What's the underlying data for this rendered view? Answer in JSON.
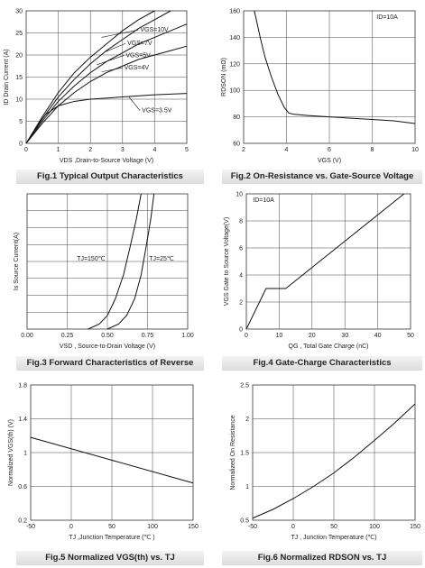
{
  "captions": {
    "fig1": "Fig.1 Typical Output Characteristics",
    "fig2": "Fig.2 On-Resistance vs. Gate-Source Voltage",
    "fig3": "Fig.3 Forward Characteristics of Reverse",
    "fig4": "Fig.4 Gate-Charge Characteristics",
    "fig5": "Fig.5 Normalized VGS(th) vs. TJ",
    "fig6": "Fig.6 Normalized RDSON vs. TJ"
  },
  "chart_data": [
    {
      "id": "fig1",
      "type": "line",
      "xlabel": "VDS ,Drain-to-Source Voltage (V)",
      "ylabel": "ID Drain Current (A)",
      "xlim": [
        0,
        5
      ],
      "ylim": [
        0,
        30
      ],
      "xticks": [
        0,
        1,
        2,
        3,
        4,
        5
      ],
      "yticks": [
        0,
        5,
        10,
        15,
        20,
        25,
        30
      ],
      "grid": true,
      "series": [
        {
          "name": "VGS=10V",
          "x": [
            0,
            0.5,
            1,
            1.5,
            2,
            2.5,
            3,
            3.5,
            4
          ],
          "y": [
            0,
            6,
            11.5,
            16,
            19.5,
            22.5,
            25.5,
            28,
            30
          ]
        },
        {
          "name": "VGS=7V",
          "x": [
            0,
            0.5,
            1,
            1.5,
            2,
            2.5,
            3,
            3.5,
            4,
            4.5
          ],
          "y": [
            0,
            5.5,
            10.5,
            14.5,
            18,
            21,
            23.5,
            26,
            28,
            30
          ]
        },
        {
          "name": "VGS=5V",
          "x": [
            0,
            0.5,
            1,
            1.5,
            2,
            2.5,
            3,
            3.5,
            4,
            4.5,
            5
          ],
          "y": [
            0,
            5,
            9.5,
            13,
            16,
            18.5,
            20.5,
            22.5,
            24,
            25.5,
            27
          ]
        },
        {
          "name": "VGS=4V",
          "x": [
            0,
            0.5,
            1,
            1.5,
            2,
            2.5,
            3,
            3.5,
            4,
            4.5,
            5
          ],
          "y": [
            0,
            4.5,
            8.5,
            11.5,
            14,
            16,
            17.5,
            19,
            20,
            21,
            22
          ]
        },
        {
          "name": "VGS=3.5V",
          "x": [
            0,
            0.3,
            0.6,
            1,
            1.5,
            2,
            3,
            4,
            5
          ],
          "y": [
            0,
            3.5,
            6.5,
            8.5,
            9.5,
            10,
            10.5,
            11,
            11.3
          ]
        }
      ],
      "annotations": [
        "VGS=10V",
        "VGS=7V",
        "VGS=5V",
        "VGS=4V",
        "VGS=3.5V"
      ]
    },
    {
      "id": "fig2",
      "type": "line",
      "xlabel": "VGS (V)",
      "ylabel": "RDSON (mΩ)",
      "xlim": [
        2,
        10
      ],
      "ylim": [
        60,
        160
      ],
      "xticks": [
        2,
        4,
        6,
        8,
        10
      ],
      "yticks": [
        60,
        80,
        100,
        120,
        140,
        160
      ],
      "grid": true,
      "series": [
        {
          "name": "",
          "x": [
            2.5,
            2.8,
            3.0,
            3.3,
            3.6,
            3.9,
            4.1,
            4.3,
            5,
            6,
            7,
            8,
            9,
            10
          ],
          "y": [
            160,
            138,
            125,
            110,
            97,
            87,
            83,
            82,
            81,
            80,
            79,
            78,
            77,
            75
          ]
        }
      ],
      "annotation": "ID=10A"
    },
    {
      "id": "fig3",
      "type": "line",
      "xlabel": "VSD , Source-to-Drain Voltage (V)",
      "ylabel": "Is Source Current(A)",
      "xlim": [
        0,
        1
      ],
      "ylim": [
        0,
        8
      ],
      "xticks": [
        "0.00",
        "0.25",
        "0.50",
        "0.75",
        "1.00"
      ],
      "grid": true,
      "series": [
        {
          "name": "TJ=150℃",
          "x": [
            0.38,
            0.45,
            0.5,
            0.55,
            0.6,
            0.64,
            0.68,
            0.71
          ],
          "y": [
            0,
            0.3,
            0.8,
            1.8,
            3.2,
            4.8,
            6.5,
            8
          ]
        },
        {
          "name": "TJ=25℃",
          "x": [
            0.5,
            0.57,
            0.62,
            0.67,
            0.71,
            0.74,
            0.77,
            0.79
          ],
          "y": [
            0,
            0.3,
            0.8,
            1.8,
            3.2,
            4.8,
            6.5,
            8
          ]
        }
      ],
      "annotations": [
        "TJ=150℃",
        "TJ=25℃"
      ]
    },
    {
      "id": "fig4",
      "type": "line",
      "xlabel": "QG , Total Gate Charge (nC)",
      "ylabel": "VGS Gate to Source Voltage(V)",
      "xlim": [
        0,
        50
      ],
      "ylim": [
        0,
        10
      ],
      "xticks": [
        0,
        10,
        20,
        30,
        40,
        50
      ],
      "yticks": [
        0,
        2,
        4,
        6,
        8,
        10
      ],
      "grid": true,
      "series": [
        {
          "name": "",
          "x": [
            0,
            6,
            12,
            48
          ],
          "y": [
            0,
            3,
            3,
            10
          ]
        }
      ],
      "annotation": "ID=10A"
    },
    {
      "id": "fig5",
      "type": "line",
      "xlabel": "TJ ,Junction Temperature (℃ )",
      "ylabel": "Normalized VGS(th) (V)",
      "xlim": [
        -50,
        150
      ],
      "ylim": [
        0.2,
        1.8
      ],
      "xticks": [
        -50,
        0,
        50,
        100,
        150
      ],
      "yticks": [
        0.2,
        0.6,
        1,
        1.4,
        1.8
      ],
      "grid": true,
      "series": [
        {
          "name": "",
          "x": [
            -50,
            150
          ],
          "y": [
            1.18,
            0.64
          ]
        }
      ]
    },
    {
      "id": "fig6",
      "type": "line",
      "xlabel": "TJ , Junction Temperature (℃)",
      "ylabel": "Normalized On Resistance",
      "xlim": [
        -50,
        150
      ],
      "ylim": [
        0.5,
        2.5
      ],
      "xticks": [
        -50,
        0,
        50,
        100,
        150
      ],
      "yticks": [
        0.5,
        1,
        1.5,
        2,
        2.5
      ],
      "grid": true,
      "series": [
        {
          "name": "",
          "x": [
            -50,
            -25,
            0,
            25,
            50,
            75,
            100,
            125,
            150
          ],
          "y": [
            0.53,
            0.66,
            0.82,
            1.0,
            1.2,
            1.43,
            1.68,
            1.94,
            2.22
          ]
        }
      ]
    }
  ]
}
